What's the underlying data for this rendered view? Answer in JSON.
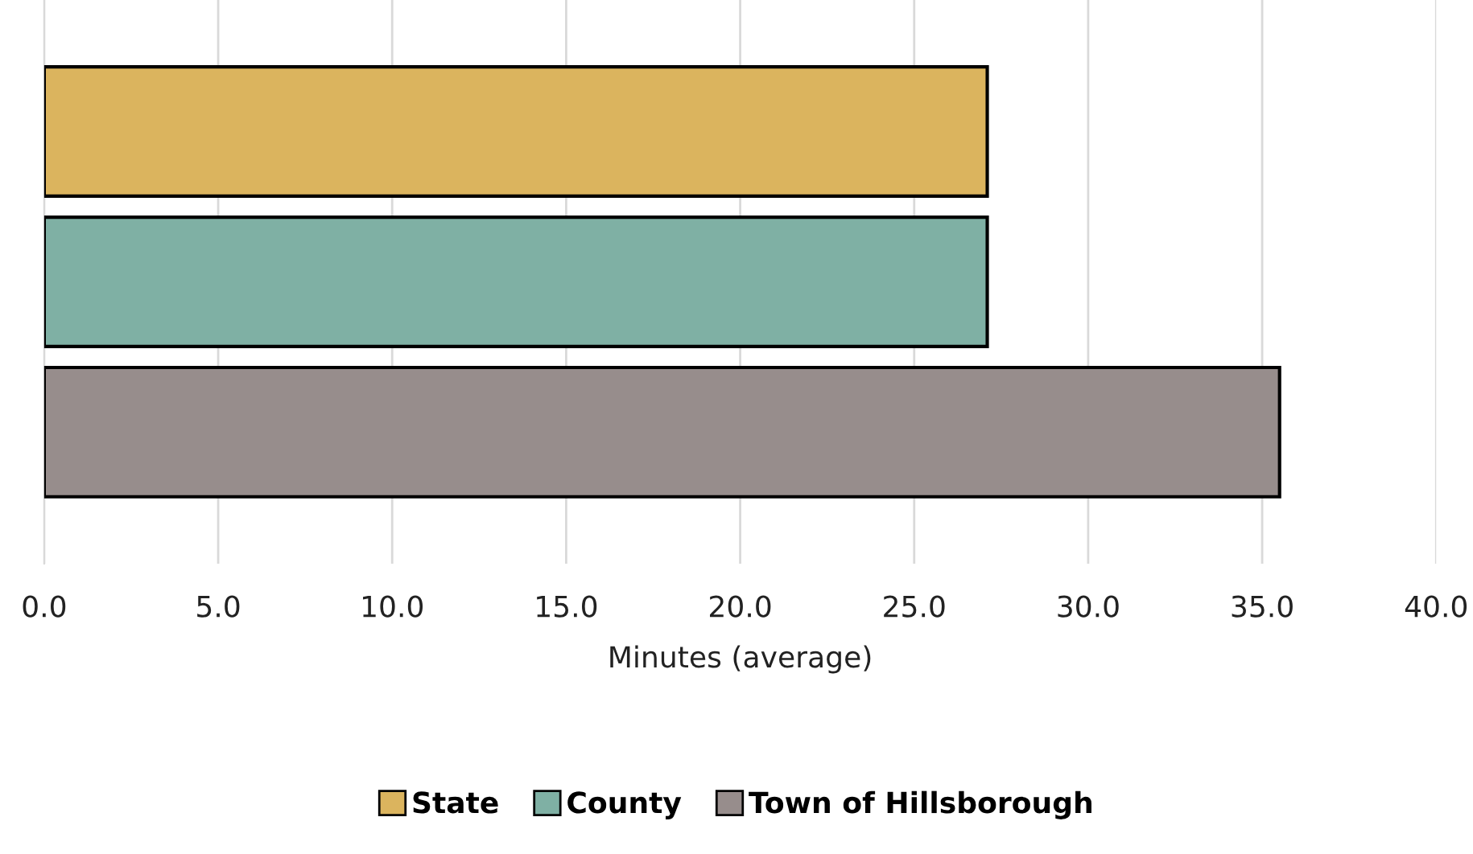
{
  "chart_data": {
    "type": "bar",
    "orientation": "horizontal",
    "categories": [
      null
    ],
    "xlabel": "Minutes (average)",
    "series": [
      {
        "name": "State",
        "color": "#dbb45e",
        "values": [
          27.1
        ]
      },
      {
        "name": "County",
        "color": "#7fb0a4",
        "values": [
          27.1
        ]
      },
      {
        "name": "Town of Hillsborough",
        "color": "#978d8c",
        "values": [
          35.5
        ]
      }
    ],
    "xlim": [
      0,
      40
    ],
    "xticks": [
      {
        "value": 0,
        "label": "0.0"
      },
      {
        "value": 5,
        "label": "5.0"
      },
      {
        "value": 10,
        "label": "10.0"
      },
      {
        "value": 15,
        "label": "15.0"
      },
      {
        "value": 20,
        "label": "20.0"
      },
      {
        "value": 25,
        "label": "25.0"
      },
      {
        "value": 30,
        "label": "30.0"
      },
      {
        "value": 35,
        "label": "35.0"
      },
      {
        "value": 40,
        "label": "40.0"
      }
    ],
    "grid": "x",
    "legend": "bottom"
  }
}
